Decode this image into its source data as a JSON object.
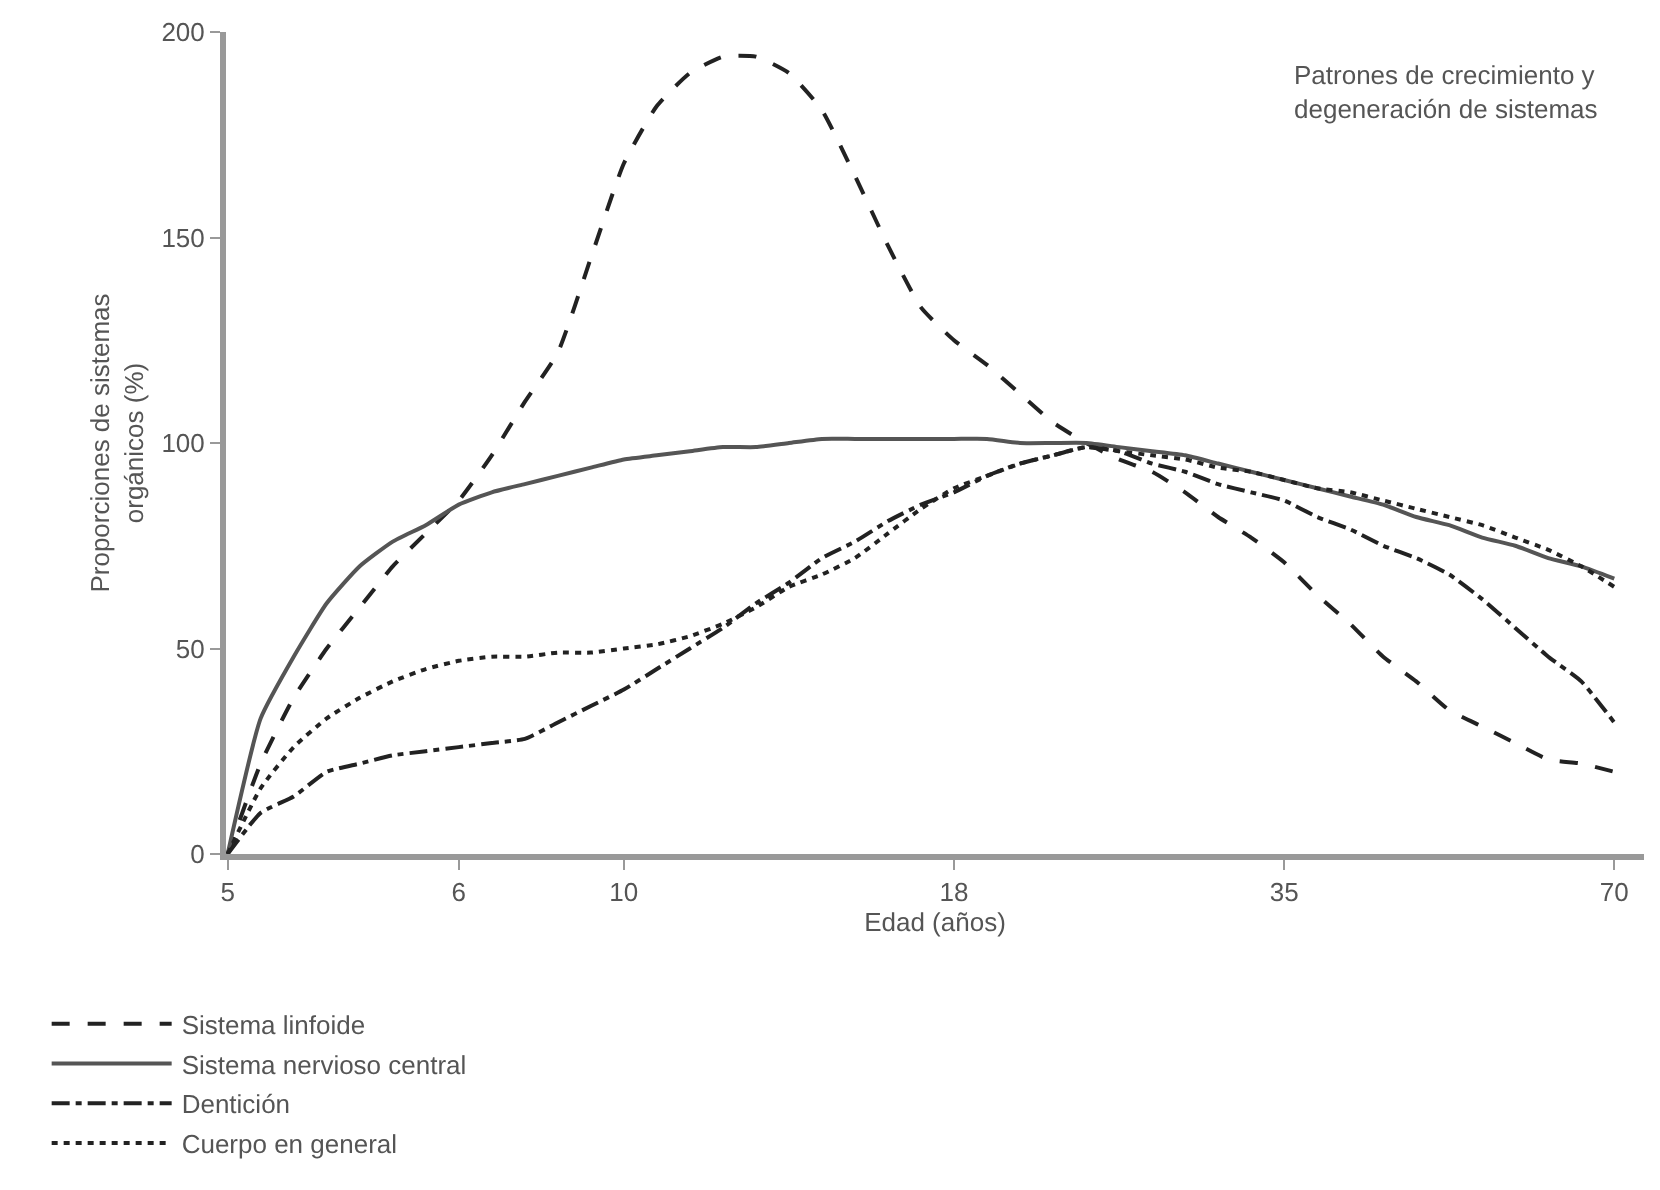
{
  "chart_data": {
    "type": "line",
    "xlabel": "Edad (años)",
    "ylabel": "Proporciones de sistemas\norgánicos (%)",
    "annotations": [
      "Patrones de crecimiento y\ndegeneración de sistemas"
    ],
    "categories": [
      "5",
      null,
      null,
      null,
      null,
      null,
      null,
      "6",
      null,
      null,
      null,
      null,
      "10",
      null,
      null,
      null,
      null,
      null,
      null,
      null,
      null,
      null,
      "18",
      null,
      null,
      null,
      null,
      null,
      null,
      null,
      null,
      null,
      "35",
      null,
      null,
      null,
      null,
      null,
      null,
      null,
      null,
      null,
      "70"
    ],
    "ylim": [
      0,
      200
    ],
    "yticks": [
      0,
      50,
      100,
      150,
      200
    ],
    "grid": false,
    "legend": "bottom left",
    "marker": "none",
    "series": [
      {
        "name": "Sistema linfoide",
        "color": "#222222",
        "line_style": "dashed",
        "values": [
          0,
          22,
          38,
          50,
          60,
          70,
          78,
          86,
          97,
          110,
          122,
          145,
          168,
          182,
          190,
          194,
          194,
          190,
          181,
          165,
          148,
          133,
          125,
          119,
          112,
          105,
          100,
          96,
          93,
          88,
          82,
          77,
          71,
          63,
          56,
          48,
          42,
          35,
          31,
          27,
          23,
          22,
          20
        ]
      },
      {
        "name": "Sistema nervioso central",
        "color": "#555555",
        "line_style": "solid",
        "values": [
          0,
          33,
          48,
          61,
          70,
          76,
          80,
          85,
          88,
          90,
          92,
          94,
          96,
          97,
          98,
          99,
          99,
          100,
          101,
          101,
          101,
          101,
          101,
          101,
          100,
          100,
          100,
          99,
          98,
          97,
          95,
          93,
          91,
          89,
          87,
          85,
          82,
          80,
          77,
          75,
          72,
          70,
          67
        ]
      },
      {
        "name": "Dentición",
        "color": "#222222",
        "line_style": "dashdot",
        "values": [
          0,
          10,
          14,
          20,
          22,
          24,
          25,
          26,
          27,
          28,
          32,
          36,
          40,
          45,
          50,
          55,
          61,
          66,
          72,
          76,
          81,
          85,
          88,
          92,
          95,
          97,
          99,
          98,
          95,
          93,
          90,
          88,
          86,
          82,
          79,
          75,
          72,
          68,
          62,
          55,
          48,
          42,
          32
        ]
      },
      {
        "name": "Cuerpo en general",
        "color": "#222222",
        "line_style": "dotted",
        "values": [
          0,
          16,
          26,
          33,
          38,
          42,
          45,
          47,
          48,
          48,
          49,
          49,
          50,
          51,
          53,
          56,
          60,
          65,
          68,
          72,
          78,
          84,
          89,
          92,
          95,
          97,
          99,
          98,
          97,
          96,
          94,
          93,
          91,
          89,
          88,
          86,
          84,
          82,
          80,
          77,
          74,
          70,
          65
        ]
      }
    ]
  }
}
